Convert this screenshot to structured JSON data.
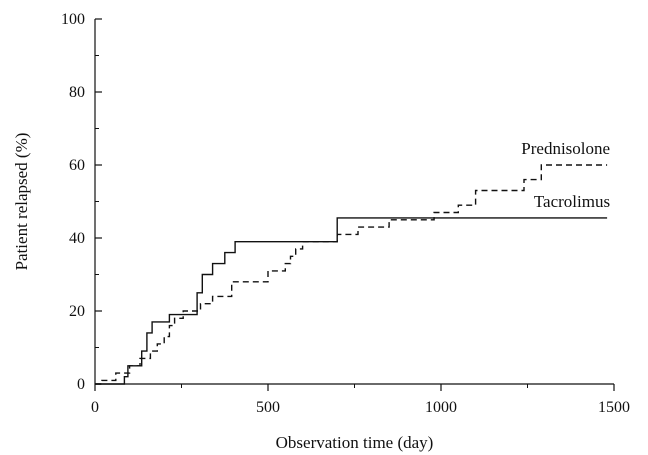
{
  "chart_data": {
    "type": "line",
    "xlabel": "Observation time (day)",
    "ylabel": "Patient relapsed (%)",
    "xlim": [
      0,
      1500
    ],
    "ylim": [
      0,
      100
    ],
    "xticks": [
      0,
      500,
      1000,
      1500
    ],
    "yticks": [
      0,
      20,
      40,
      60,
      80,
      100
    ],
    "x_minor_step": 250,
    "y_minor_step": 10,
    "grid": false,
    "legend": "inline labels at right end of each series",
    "series": [
      {
        "name": "Tacrolimus",
        "style": "solid",
        "step": true,
        "points": [
          [
            0,
            0
          ],
          [
            85,
            0
          ],
          [
            85,
            2
          ],
          [
            95,
            2
          ],
          [
            95,
            5
          ],
          [
            135,
            5
          ],
          [
            135,
            9
          ],
          [
            150,
            9
          ],
          [
            150,
            14
          ],
          [
            165,
            14
          ],
          [
            165,
            17
          ],
          [
            215,
            17
          ],
          [
            215,
            19
          ],
          [
            295,
            19
          ],
          [
            295,
            25
          ],
          [
            310,
            25
          ],
          [
            310,
            30
          ],
          [
            340,
            30
          ],
          [
            340,
            33
          ],
          [
            375,
            33
          ],
          [
            375,
            36
          ],
          [
            405,
            36
          ],
          [
            405,
            39
          ],
          [
            700,
            39
          ],
          [
            700,
            45.5
          ],
          [
            1480,
            45.5
          ]
        ]
      },
      {
        "name": "Prednisolone",
        "style": "dashed",
        "step": true,
        "points": [
          [
            0,
            0
          ],
          [
            20,
            0
          ],
          [
            20,
            1
          ],
          [
            60,
            1
          ],
          [
            60,
            3
          ],
          [
            100,
            3
          ],
          [
            100,
            5
          ],
          [
            130,
            5
          ],
          [
            130,
            7
          ],
          [
            160,
            7
          ],
          [
            160,
            9
          ],
          [
            180,
            9
          ],
          [
            180,
            11
          ],
          [
            200,
            11
          ],
          [
            200,
            13
          ],
          [
            215,
            13
          ],
          [
            215,
            16
          ],
          [
            230,
            16
          ],
          [
            230,
            18
          ],
          [
            255,
            18
          ],
          [
            255,
            20
          ],
          [
            305,
            20
          ],
          [
            305,
            22
          ],
          [
            340,
            22
          ],
          [
            340,
            24
          ],
          [
            395,
            24
          ],
          [
            395,
            28
          ],
          [
            500,
            28
          ],
          [
            500,
            31
          ],
          [
            550,
            31
          ],
          [
            550,
            33
          ],
          [
            565,
            33
          ],
          [
            565,
            35
          ],
          [
            580,
            35
          ],
          [
            580,
            37
          ],
          [
            600,
            37
          ],
          [
            600,
            39
          ],
          [
            700,
            39
          ],
          [
            700,
            41
          ],
          [
            760,
            41
          ],
          [
            760,
            43
          ],
          [
            850,
            43
          ],
          [
            850,
            45
          ],
          [
            980,
            45
          ],
          [
            980,
            47
          ],
          [
            1050,
            47
          ],
          [
            1050,
            49
          ],
          [
            1100,
            49
          ],
          [
            1100,
            53
          ],
          [
            1240,
            53
          ],
          [
            1240,
            56
          ],
          [
            1290,
            56
          ],
          [
            1290,
            60
          ],
          [
            1480,
            60
          ]
        ]
      }
    ]
  }
}
